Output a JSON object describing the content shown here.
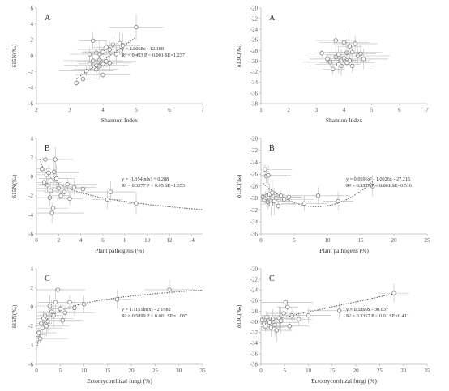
{
  "colors": {
    "axis": "#bbbbbb",
    "point": "#888888",
    "error_bar": "#b5b5b5",
    "trend": "#555555"
  },
  "chart_data": [
    {
      "id": "p1",
      "type": "scatter",
      "panel_label": "A",
      "xlabel": "Shannon Index",
      "ylabel": "δ15N(‰)",
      "xlim": [
        2,
        7
      ],
      "ylim": [
        -6,
        6
      ],
      "xticks": [
        "2",
        "3",
        "4",
        "5",
        "6",
        "7"
      ],
      "yticks": [
        "-6",
        "-4",
        "-2",
        "0",
        "2",
        "4",
        "6"
      ],
      "x": [
        3.2,
        3.4,
        3.5,
        3.6,
        3.6,
        3.7,
        3.7,
        3.8,
        3.8,
        3.8,
        3.9,
        3.9,
        3.9,
        4.0,
        4.0,
        4.0,
        4.1,
        4.1,
        4.2,
        4.2,
        4.3,
        4.4,
        4.5,
        4.6,
        5.0
      ],
      "y": [
        -3.4,
        -2.9,
        -1.9,
        -1.0,
        0.2,
        -0.6,
        1.9,
        -1.7,
        -1.2,
        0.4,
        -1.3,
        -0.5,
        0.2,
        -2.4,
        -1.0,
        0.5,
        -0.7,
        1.1,
        -0.9,
        0.8,
        1.4,
        0.2,
        1.6,
        1.3,
        3.6
      ],
      "trend_type": "linear",
      "trend": {
        "a": 2.9068,
        "b": -12.188
      },
      "eq1": "y = 2.9068x - 12.188",
      "eq2": "R² = 0.453 P < 0.001 SE=1.237"
    },
    {
      "id": "p2",
      "type": "scatter",
      "panel_label": "A",
      "xlabel": "Shannon Index",
      "ylabel": "δ13C(‰)",
      "xlim": [
        1,
        7
      ],
      "ylim": [
        -38,
        -20
      ],
      "xticks": [
        "1",
        "2",
        "3",
        "4",
        "5",
        "6",
        "7"
      ],
      "yticks": [
        "-20",
        "-22",
        "-24",
        "-26",
        "-28",
        "-30",
        "-32",
        "-34",
        "-36",
        "-38"
      ],
      "x": [
        3.2,
        3.4,
        3.5,
        3.6,
        3.7,
        3.7,
        3.8,
        3.8,
        3.9,
        3.9,
        4.0,
        4.0,
        4.1,
        4.1,
        4.2,
        4.2,
        4.3,
        4.3,
        4.4,
        4.5,
        4.6,
        4.7
      ],
      "y": [
        -28.5,
        -29.6,
        -30.2,
        -31.5,
        -26.1,
        -29.2,
        -28.8,
        -30.6,
        -30.9,
        -29.8,
        -26.5,
        -29.5,
        -28.4,
        -30.3,
        -27.2,
        -29.9,
        -28.3,
        -30.9,
        -26.7,
        -29.0,
        -28.6,
        -29.6
      ]
    },
    {
      "id": "p3",
      "type": "scatter",
      "panel_label": "B",
      "xlabel": "Plant pathogens (%)",
      "ylabel": "δ15N(‰)",
      "xlim": [
        0,
        15
      ],
      "ylim": [
        -6,
        4
      ],
      "xticks": [
        "0",
        "2",
        "4",
        "6",
        "8",
        "10",
        "12",
        "14"
      ],
      "yticks": [
        "-6",
        "-4",
        "-2",
        "0",
        "2",
        "4"
      ],
      "x": [
        0.5,
        0.7,
        0.8,
        0.9,
        1.0,
        1.1,
        1.2,
        1.3,
        1.4,
        1.5,
        1.6,
        1.7,
        1.8,
        2.0,
        2.2,
        2.5,
        2.8,
        3.0,
        3.4,
        4.2,
        6.4,
        6.7,
        9.0
      ],
      "y": [
        0.8,
        -0.6,
        1.8,
        0.2,
        -0.9,
        0.4,
        -2.2,
        -1.5,
        -3.8,
        -3.3,
        0.5,
        1.8,
        -0.2,
        -1.2,
        -2.0,
        -1.6,
        -0.8,
        -2.3,
        -1.1,
        -1.3,
        -2.4,
        -1.6,
        -2.8
      ],
      "trend_type": "log",
      "trend": {
        "a": -1.354,
        "b": 0.208
      },
      "eq1": "y = -1.354ln(x) + 0.208",
      "eq2": "R² = 0.3277 P < 0.05 SE=1.353"
    },
    {
      "id": "p4",
      "type": "scatter",
      "panel_label": "B",
      "xlabel": "Plant pathogens (%)",
      "ylabel": "δ13C(‰)",
      "xlim": [
        0,
        25
      ],
      "ylim": [
        -36,
        -20
      ],
      "xticks": [
        "0",
        "5",
        "10",
        "15",
        "20",
        "25"
      ],
      "yticks": [
        "-20",
        "-22",
        "-24",
        "-26",
        "-28",
        "-30",
        "-32",
        "-34",
        "-36"
      ],
      "x": [
        0.3,
        0.5,
        0.6,
        0.7,
        0.8,
        0.9,
        1.0,
        1.1,
        1.2,
        1.3,
        1.5,
        1.7,
        2.0,
        2.3,
        2.6,
        3.0,
        3.5,
        4.2,
        6.5,
        8.6,
        11.6,
        16.8
      ],
      "y": [
        -29.8,
        -30.3,
        -25.2,
        -29.9,
        -26.3,
        -29.6,
        -30.6,
        -26.2,
        -29.9,
        -29.4,
        -31.0,
        -29.1,
        -30.5,
        -30.0,
        -31.3,
        -29.6,
        -30.2,
        -29.8,
        -30.9,
        -29.6,
        -30.5,
        -28.0
      ],
      "trend_type": "poly2",
      "trend": {
        "a": 0.0596,
        "b": -1.0026,
        "c": -27.215
      },
      "eq1": "y = 0.0596x² - 1.0026x - 27.215",
      "eq2": "R² = 0.3377 P < 0.001 SE=0.516"
    },
    {
      "id": "p5",
      "type": "scatter",
      "panel_label": "C",
      "xlabel": "Ectomycorrhizal fungi (%)",
      "ylabel": "δ15N(‰)",
      "xlim": [
        0,
        35
      ],
      "ylim": [
        -6,
        4
      ],
      "xticks": [
        "0",
        "5",
        "10",
        "15",
        "20",
        "25",
        "30",
        "35"
      ],
      "yticks": [
        "-6",
        "-4",
        "-2",
        "0",
        "2",
        "4"
      ],
      "x": [
        0.3,
        0.5,
        0.8,
        1.0,
        1.3,
        1.5,
        1.8,
        2.1,
        2.4,
        2.8,
        3.2,
        3.6,
        4.0,
        4.5,
        5.0,
        5.5,
        6.0,
        7.0,
        8.0,
        10.0,
        17.0,
        28.0
      ],
      "y": [
        -2.9,
        -2.7,
        -3.3,
        -1.7,
        -2.2,
        -1.2,
        -0.9,
        -2.0,
        -1.5,
        0.1,
        -0.5,
        -0.9,
        0.5,
        1.8,
        -0.2,
        -1.4,
        -0.6,
        0.5,
        -0.1,
        0.3,
        0.8,
        1.8
      ],
      "trend_type": "log",
      "trend": {
        "a": 1.1151,
        "b": -2.1982
      },
      "eq1": "y = 1.1151ln(x) - 2.1982",
      "eq2": "R² = 0.5899 P < 0.001 SE=1.087"
    },
    {
      "id": "p6",
      "type": "scatter",
      "panel_label": "C",
      "xlabel": "Ectomycorrhizal fungi (%)",
      "ylabel": "δ13C(‰)",
      "xlim": [
        0,
        35
      ],
      "ylim": [
        -38,
        -20
      ],
      "xticks": [
        "0",
        "5",
        "10",
        "15",
        "20",
        "25",
        "30",
        "35"
      ],
      "yticks": [
        "-20",
        "-22",
        "-24",
        "-26",
        "-28",
        "-30",
        "-32",
        "-34",
        "-36",
        "-38"
      ],
      "x": [
        0.3,
        0.6,
        0.9,
        1.2,
        1.5,
        1.8,
        2.1,
        2.5,
        2.9,
        3.3,
        3.8,
        4.2,
        4.8,
        5.2,
        5.6,
        6.0,
        6.5,
        8.0,
        10.0,
        16.5,
        28.0
      ],
      "y": [
        -29.6,
        -30.3,
        -30.9,
        -29.1,
        -29.8,
        -30.1,
        -31.1,
        -29.4,
        -30.6,
        -31.6,
        -29.3,
        -29.8,
        -28.4,
        -26.3,
        -27.2,
        -30.8,
        -28.8,
        -29.5,
        -28.8,
        -27.9,
        -24.6
      ],
      "trend_type": "linear",
      "trend": {
        "a": 0.1899,
        "b": -30.037
      },
      "eq1": "y = 0.1899x - 30.037",
      "eq2": "R² = 0.3357 P < 0.01 SE=0.411"
    }
  ]
}
